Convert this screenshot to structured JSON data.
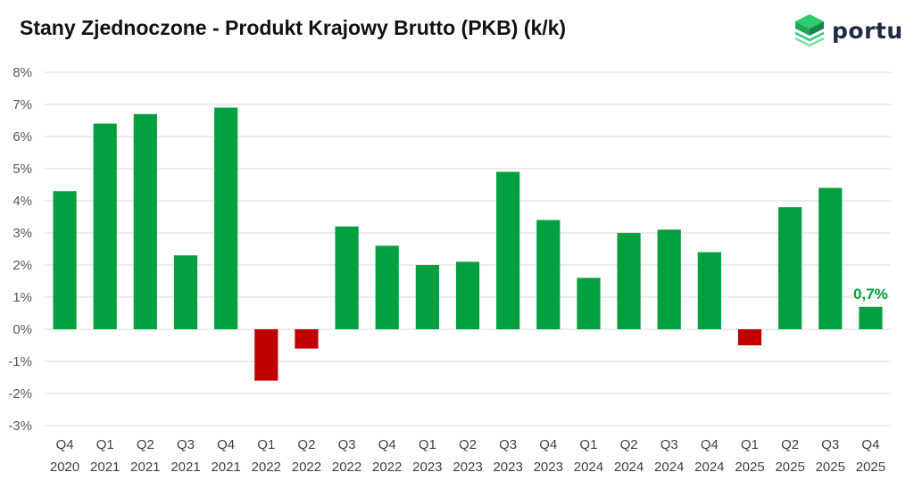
{
  "chart_data": {
    "type": "bar",
    "title": "Stany Zjednoczone - Produkt Krajowy Brutto (PKB) (k/k)",
    "categories": [
      [
        "Q4",
        "2020"
      ],
      [
        "Q1",
        "2021"
      ],
      [
        "Q2",
        "2021"
      ],
      [
        "Q3",
        "2021"
      ],
      [
        "Q4",
        "2021"
      ],
      [
        "Q1",
        "2022"
      ],
      [
        "Q2",
        "2022"
      ],
      [
        "Q3",
        "2022"
      ],
      [
        "Q4",
        "2022"
      ],
      [
        "Q1",
        "2023"
      ],
      [
        "Q2",
        "2023"
      ],
      [
        "Q3",
        "2023"
      ],
      [
        "Q4",
        "2023"
      ],
      [
        "Q1",
        "2024"
      ],
      [
        "Q2",
        "2024"
      ],
      [
        "Q3",
        "2024"
      ],
      [
        "Q4",
        "2024"
      ],
      [
        "Q1",
        "2025"
      ],
      [
        "Q2",
        "2025"
      ],
      [
        "Q3",
        "2025"
      ],
      [
        "Q4",
        "2025"
      ]
    ],
    "values": [
      4.3,
      6.4,
      6.7,
      2.3,
      6.9,
      -1.6,
      -0.6,
      3.2,
      2.6,
      2.0,
      2.1,
      4.9,
      3.4,
      1.6,
      3.0,
      3.1,
      2.4,
      -0.5,
      3.8,
      4.4,
      0.7
    ],
    "ylim": [
      -3,
      8
    ],
    "yticks": [
      8,
      7,
      6,
      5,
      4,
      3,
      2,
      1,
      0,
      -1,
      -2,
      -3
    ],
    "tick_suffix": "%",
    "grid": true,
    "legend": "none",
    "annotations": [
      {
        "index": 20,
        "text": "0,7%"
      }
    ],
    "colors": {
      "positive": "#00a03e",
      "negative": "#c00000",
      "grid": "#d9d9d9"
    }
  },
  "logo": {
    "text": "portu",
    "icon": "layered-cube-icon"
  }
}
